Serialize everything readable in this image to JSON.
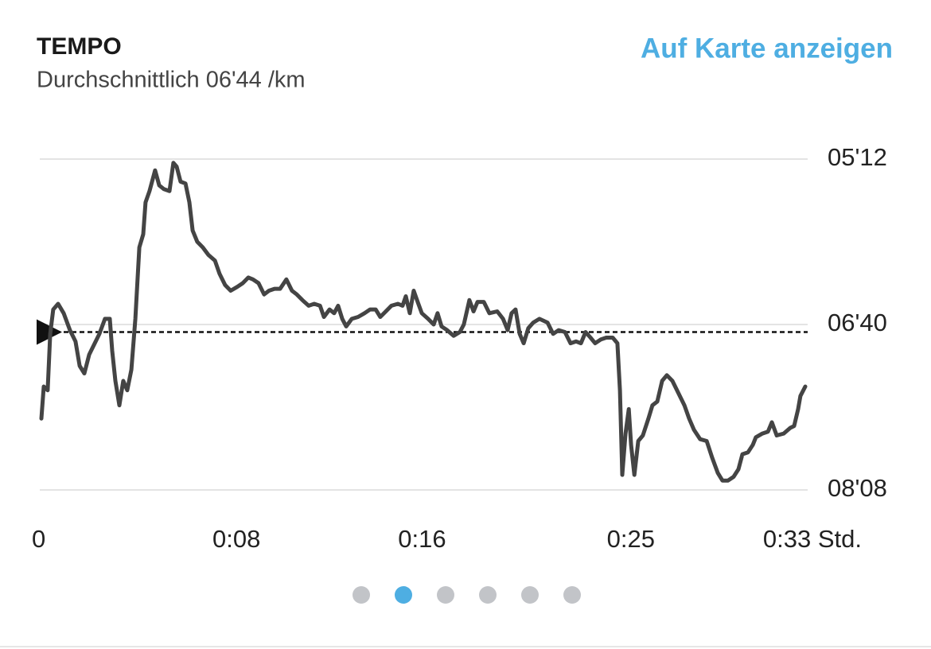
{
  "chart_data": {
    "type": "line",
    "title": "TEMPO",
    "subtitle": "Durchschnittlich 06'44 /km",
    "link": "Auf Karte anzeigen",
    "average": 404,
    "y_inverted": true,
    "grid": true,
    "xlim": [
      0,
      33
    ],
    "ylim": [
      312,
      488
    ],
    "xticks": [
      0,
      {
        "value": 8,
        "label": "0:08"
      },
      {
        "value": 16,
        "label": "0:16"
      },
      {
        "value": 25,
        "label": "0:25"
      },
      {
        "value": 33,
        "label": "0:33 Std."
      }
    ],
    "yticks": [
      {
        "value": 312,
        "label": "05'12"
      },
      {
        "value": 400,
        "label": "06'40"
      },
      {
        "value": 488,
        "label": "08'08"
      }
    ],
    "series": [
      {
        "color": "#444444",
        "x": [
          0.07,
          0.17,
          0.34,
          0.45,
          0.58,
          0.79,
          1.03,
          1.3,
          1.54,
          1.72,
          1.92,
          2.13,
          2.33,
          2.57,
          2.81,
          3.02,
          3.12,
          3.26,
          3.43,
          3.6,
          3.77,
          3.95,
          4.12,
          4.29,
          4.46,
          4.56,
          4.73,
          4.97,
          5.15,
          5.35,
          5.59,
          5.76,
          5.9,
          6.07,
          6.28,
          6.45,
          6.59,
          6.79,
          7.03,
          7.27,
          7.55,
          7.75,
          7.99,
          8.23,
          8.51,
          8.75,
          8.99,
          9.19,
          9.43,
          9.67,
          9.88,
          10.12,
          10.36,
          10.63,
          10.87,
          11.08,
          11.32,
          11.59,
          11.83,
          12.08,
          12.25,
          12.49,
          12.69,
          12.86,
          13.04,
          13.21,
          13.45,
          13.72,
          14.0,
          14.24,
          14.48,
          14.68,
          14.92,
          15.16,
          15.44,
          15.64,
          15.78,
          15.95,
          16.12,
          16.29,
          16.47,
          16.74,
          16.98,
          17.15,
          17.32,
          17.56,
          17.84,
          18.11,
          18.28,
          18.52,
          18.7,
          18.87,
          19.14,
          19.38,
          19.72,
          19.97,
          20.17,
          20.34,
          20.51,
          20.69,
          20.86,
          21.06,
          21.27,
          21.54,
          21.89,
          22.13,
          22.37,
          22.64,
          22.88,
          23.12,
          23.33,
          23.53,
          23.74,
          23.94,
          24.18,
          24.42,
          24.7,
          24.9,
          25.01,
          25.11,
          25.25,
          25.39,
          25.49,
          25.63,
          25.8,
          26.0,
          26.24,
          26.41,
          26.62,
          26.83,
          27.03,
          27.27,
          27.51,
          27.79,
          27.99,
          28.2,
          28.47,
          28.75,
          28.99,
          29.23,
          29.43,
          29.67,
          29.91,
          30.12,
          30.29,
          30.53,
          30.74,
          30.87,
          31.15,
          31.39,
          31.56,
          31.77,
          32.07,
          32.35,
          32.52,
          32.69,
          32.79,
          33.0
        ],
        "values": [
          450,
          433,
          435,
          405,
          392,
          389,
          394,
          403,
          409,
          422,
          426,
          416,
          411,
          405,
          397,
          397,
          414,
          430,
          443,
          430,
          435,
          424,
          397,
          359,
          352,
          335,
          329,
          318,
          326,
          328,
          329,
          314,
          316,
          324,
          325,
          335,
          350,
          356,
          359,
          363,
          366,
          373,
          379,
          382,
          380,
          378,
          375,
          376,
          378,
          384,
          382,
          381,
          381,
          376,
          382,
          384,
          387,
          390,
          389,
          390,
          396,
          392,
          394,
          390,
          397,
          401,
          397,
          396,
          394,
          392,
          392,
          396,
          393,
          390,
          389,
          390,
          385,
          394,
          382,
          388,
          394,
          397,
          400,
          394,
          401,
          403,
          406,
          404,
          400,
          387,
          393,
          388,
          388,
          394,
          393,
          397,
          403,
          394,
          392,
          405,
          410,
          402,
          399,
          397,
          399,
          405,
          403,
          404,
          410,
          409,
          410,
          404,
          407,
          410,
          408,
          407,
          407,
          410,
          435,
          480,
          458,
          445,
          464,
          480,
          462,
          459,
          450,
          443,
          441,
          430,
          427,
          430,
          436,
          443,
          450,
          456,
          461,
          462,
          471,
          479,
          483,
          483,
          481,
          477,
          469,
          468,
          464,
          460,
          458,
          457,
          452,
          459,
          458,
          455,
          454,
          445,
          438,
          433
        ]
      }
    ]
  }
}
